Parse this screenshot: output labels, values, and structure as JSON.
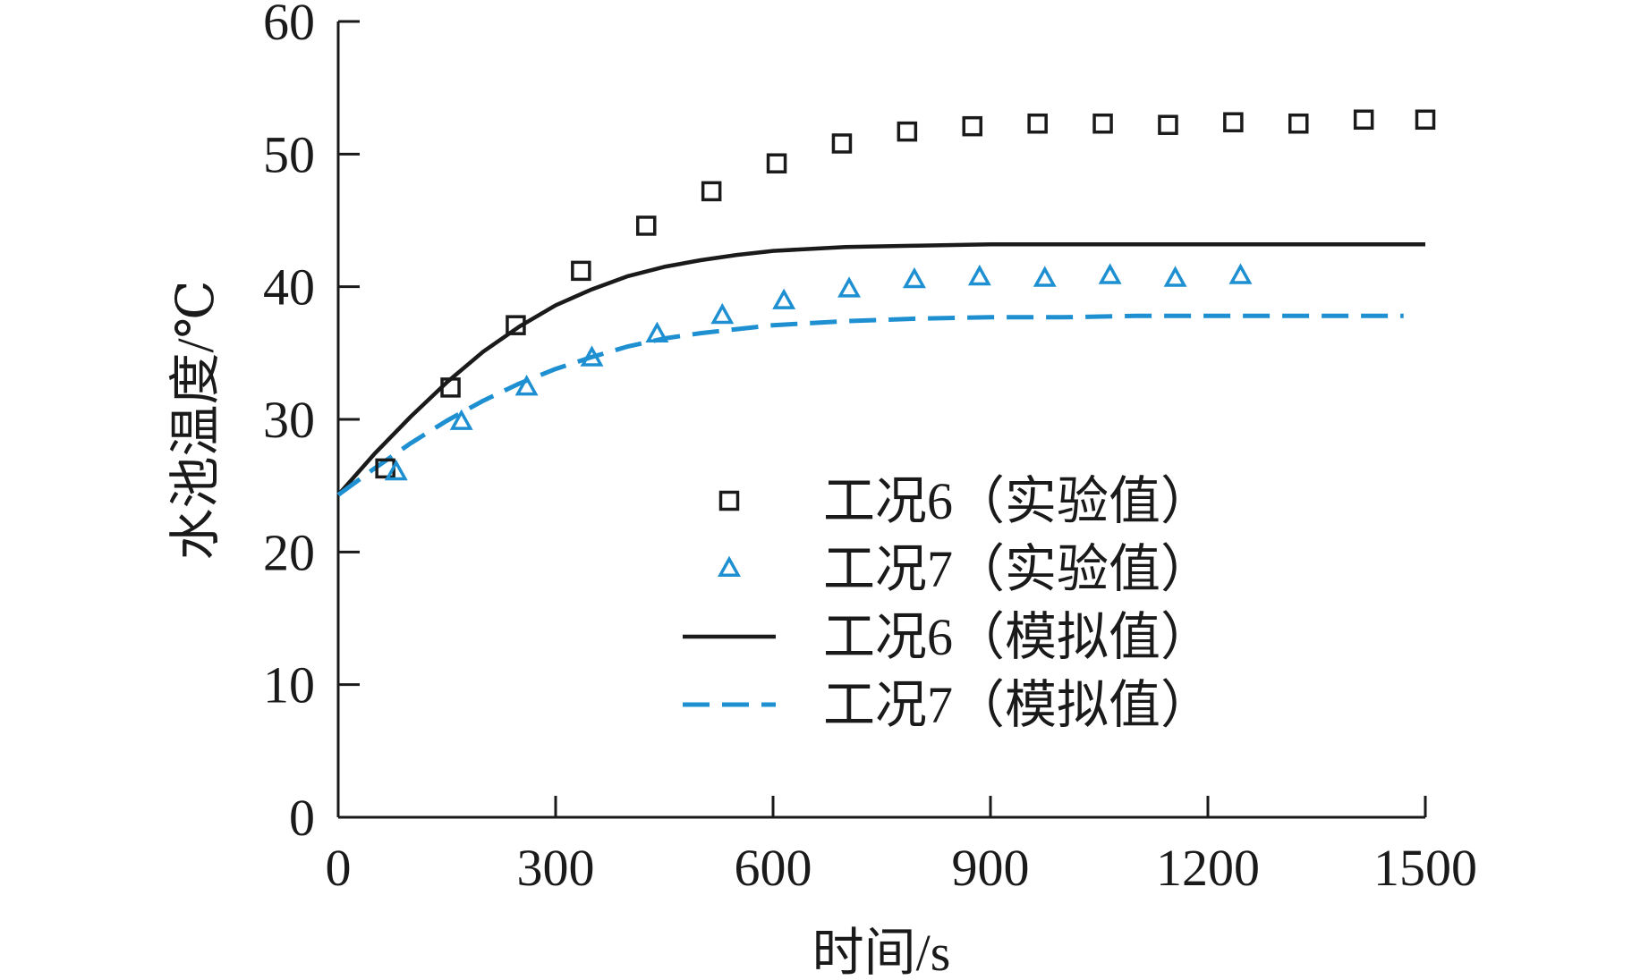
{
  "chart_data": {
    "type": "line",
    "xlabel": "时间/s",
    "ylabel": "水池温度/℃",
    "xlim": [
      0,
      1500
    ],
    "ylim": [
      0,
      60
    ],
    "xticks": [
      "0",
      "300",
      "600",
      "900",
      "1200",
      "1500"
    ],
    "yticks": [
      "0",
      "10",
      "20",
      "30",
      "40",
      "50",
      "60"
    ],
    "grid": false,
    "legend_position": "center-right",
    "series": [
      {
        "name": "工况6（实验值）",
        "kind": "scatter",
        "marker": "square",
        "color": "#1a1a1a",
        "x": [
          65,
          155,
          245,
          335,
          425,
          515,
          605,
          695,
          785,
          875,
          965,
          1055,
          1145,
          1235,
          1325,
          1415,
          1500
        ],
        "y": [
          26.3,
          32.4,
          37.1,
          41.2,
          44.6,
          47.2,
          49.3,
          50.8,
          51.7,
          52.1,
          52.3,
          52.3,
          52.2,
          52.4,
          52.3,
          52.6,
          52.6
        ]
      },
      {
        "name": "工况7（实验值）",
        "kind": "scatter",
        "marker": "triangle",
        "color": "#1e90d2",
        "x": [
          80,
          170,
          260,
          350,
          440,
          530,
          615,
          705,
          795,
          885,
          975,
          1065,
          1155,
          1245
        ],
        "y": [
          26.0,
          29.8,
          32.4,
          34.6,
          36.4,
          37.8,
          38.9,
          39.8,
          40.5,
          40.7,
          40.6,
          40.8,
          40.6,
          40.8
        ]
      },
      {
        "name": "工况6（模拟值）",
        "kind": "line",
        "style": "solid",
        "color": "#1a1a1a",
        "x": [
          0,
          50,
          100,
          150,
          200,
          250,
          300,
          350,
          400,
          450,
          500,
          550,
          600,
          700,
          800,
          900,
          1000,
          1100,
          1200,
          1300,
          1400,
          1500
        ],
        "y": [
          24.3,
          27.4,
          30.2,
          32.8,
          35.1,
          37.0,
          38.6,
          39.8,
          40.8,
          41.5,
          42.0,
          42.4,
          42.7,
          43.0,
          43.1,
          43.2,
          43.2,
          43.2,
          43.2,
          43.2,
          43.2,
          43.2
        ]
      },
      {
        "name": "工况7（模拟值）",
        "kind": "line",
        "style": "dashed",
        "color": "#1e90d2",
        "x": [
          0,
          50,
          100,
          150,
          200,
          250,
          300,
          350,
          400,
          450,
          500,
          550,
          600,
          700,
          800,
          900,
          1000,
          1100,
          1200,
          1300,
          1400,
          1470
        ],
        "y": [
          24.3,
          26.3,
          28.2,
          29.9,
          31.4,
          32.7,
          33.8,
          34.7,
          35.5,
          36.1,
          36.5,
          36.8,
          37.1,
          37.4,
          37.6,
          37.7,
          37.7,
          37.8,
          37.8,
          37.8,
          37.8,
          37.8
        ]
      }
    ]
  }
}
